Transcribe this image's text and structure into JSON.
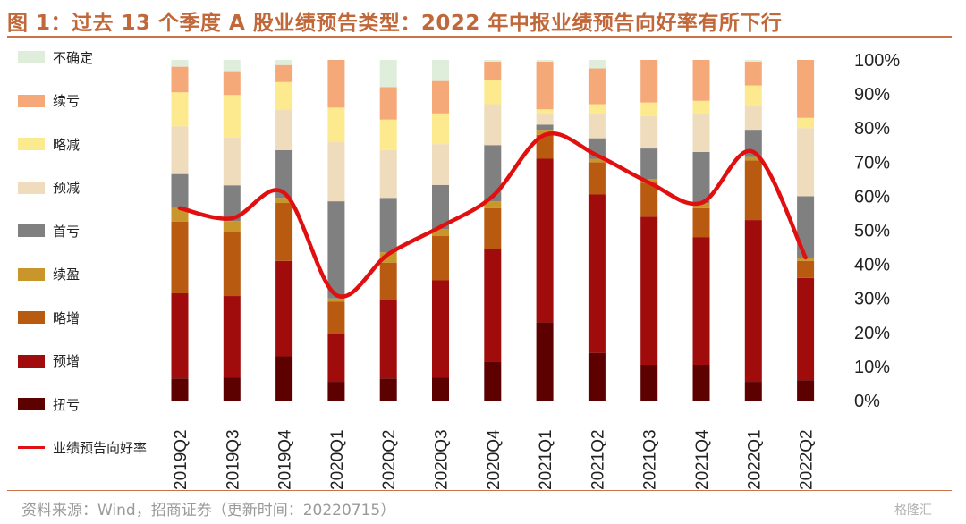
{
  "title": "图 1：过去 13 个季度 A 股业绩预告类型：2022 年中报业绩预告向好率有所下行",
  "source": "资料来源：Wind，招商证券（更新时间：20220715）",
  "watermark": "格隆汇",
  "colors": {
    "扭亏": "#5c0000",
    "预增": "#a00c0c",
    "略增": "#b85a10",
    "续盈": "#c8962a",
    "首亏": "#808080",
    "预减": "#eedcbc",
    "略减": "#fde98e",
    "续亏": "#f5a878",
    "不确定": "#deeedb",
    "line": "#e01010"
  },
  "chart_data": {
    "type": "bar",
    "stacked": true,
    "categories": [
      "2019Q2",
      "2019Q3",
      "2019Q4",
      "2020Q1",
      "2020Q2",
      "2020Q3",
      "2020Q4",
      "2021Q1",
      "2021Q2",
      "2021Q3",
      "2021Q4",
      "2022Q1",
      "2022Q2"
    ],
    "ylim": [
      0,
      100
    ],
    "yticks": [
      "0%",
      "10%",
      "20%",
      "30%",
      "40%",
      "50%",
      "60%",
      "70%",
      "80%",
      "90%",
      "100%"
    ],
    "legend_placement": "left",
    "series": [
      {
        "name": "扭亏",
        "values": [
          6.5,
          6.7,
          13,
          5.5,
          6.5,
          6.8,
          11.5,
          23,
          14,
          10.5,
          10.5,
          5.5,
          6
        ]
      },
      {
        "name": "预增",
        "values": [
          25,
          24,
          28,
          14,
          23,
          28.5,
          33,
          48,
          46.5,
          43.5,
          37.5,
          47.5,
          30
        ]
      },
      {
        "name": "略增",
        "values": [
          21,
          19,
          17,
          9.5,
          11,
          13,
          12,
          7,
          9.5,
          10,
          8.5,
          17.5,
          5
        ]
      },
      {
        "name": "续盈",
        "values": [
          4,
          3,
          1.5,
          1,
          3,
          2,
          2,
          1.5,
          1,
          1,
          1.5,
          1,
          1
        ]
      },
      {
        "name": "首亏",
        "values": [
          10,
          10.5,
          14,
          28.5,
          16,
          13,
          16.5,
          1.5,
          6,
          9,
          15,
          8,
          18
        ]
      },
      {
        "name": "预减",
        "values": [
          14,
          14,
          12,
          17.5,
          14,
          12,
          12,
          3,
          7,
          9.5,
          11,
          7,
          20
        ]
      },
      {
        "name": "略减",
        "values": [
          10,
          12.5,
          8,
          10,
          9,
          9,
          7,
          1.5,
          3,
          4,
          4,
          6,
          3
        ]
      },
      {
        "name": "续亏",
        "values": [
          7.5,
          7,
          5,
          14,
          9.5,
          9.5,
          5.5,
          14,
          10.5,
          12.5,
          12,
          7,
          17
        ]
      },
      {
        "name": "不确定",
        "values": [
          2,
          3.3,
          1.5,
          0,
          8,
          6.2,
          0.5,
          0.5,
          2.5,
          0,
          0,
          0.5,
          0
        ]
      }
    ],
    "line": {
      "name": "业绩预告向好率",
      "values": [
        56.5,
        53.5,
        61,
        31,
        43,
        51,
        60,
        78,
        72,
        64,
        58,
        73,
        42
      ]
    }
  }
}
